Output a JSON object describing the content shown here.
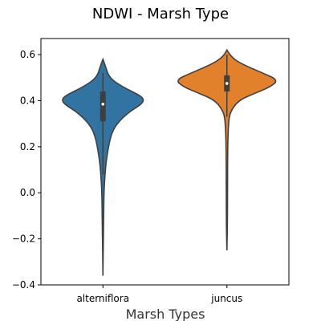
{
  "chart_data": {
    "type": "violin",
    "title": "NDWI - Marsh Type",
    "xlabel": "Marsh Types",
    "ylabel": "",
    "ylim": [
      -0.4,
      0.67
    ],
    "yticks": [
      -0.4,
      -0.2,
      0.0,
      0.2,
      0.4,
      0.6
    ],
    "ytick_labels": [
      "−0.4",
      "−0.2",
      "0.0",
      "0.2",
      "0.4",
      "0.6"
    ],
    "grid": false,
    "categories": [
      "alterniflora",
      "juncus"
    ],
    "series": [
      {
        "category": "alterniflora",
        "color": "#3274a1",
        "min": -0.36,
        "max": 0.58,
        "q1": 0.31,
        "median": 0.385,
        "q3": 0.44,
        "whisker_low": 0.08,
        "whisker_high": 0.52,
        "density_profile": [
          [
            0.58,
            0.0
          ],
          [
            0.55,
            0.05
          ],
          [
            0.5,
            0.12
          ],
          [
            0.46,
            0.38
          ],
          [
            0.42,
            0.75
          ],
          [
            0.4,
            0.8
          ],
          [
            0.38,
            0.72
          ],
          [
            0.35,
            0.5
          ],
          [
            0.3,
            0.27
          ],
          [
            0.25,
            0.15
          ],
          [
            0.15,
            0.07
          ],
          [
            0.08,
            0.04
          ],
          [
            0.0,
            0.02
          ],
          [
            -0.1,
            0.015
          ],
          [
            -0.2,
            0.008
          ],
          [
            -0.36,
            0.0
          ]
        ]
      },
      {
        "category": "juncus",
        "color": "#e1812c",
        "min": -0.25,
        "max": 0.62,
        "q1": 0.44,
        "median": 0.475,
        "q3": 0.51,
        "whisker_low": 0.33,
        "whisker_high": 0.6,
        "density_profile": [
          [
            0.62,
            0.0
          ],
          [
            0.59,
            0.08
          ],
          [
            0.56,
            0.28
          ],
          [
            0.52,
            0.7
          ],
          [
            0.49,
            1.0
          ],
          [
            0.46,
            0.85
          ],
          [
            0.43,
            0.52
          ],
          [
            0.4,
            0.22
          ],
          [
            0.35,
            0.06
          ],
          [
            0.3,
            0.03
          ],
          [
            0.2,
            0.015
          ],
          [
            0.0,
            0.012
          ],
          [
            -0.15,
            0.01
          ],
          [
            -0.25,
            0.0
          ]
        ]
      }
    ]
  }
}
